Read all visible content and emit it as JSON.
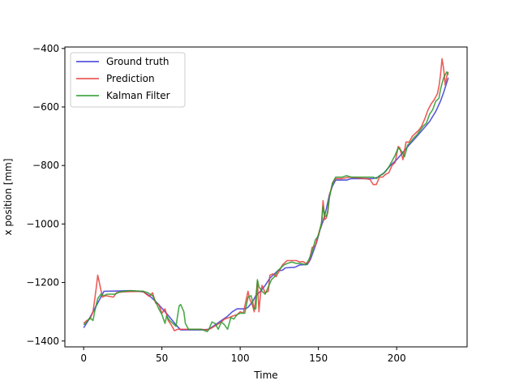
{
  "chart_data": {
    "type": "line",
    "xlabel": "Time",
    "ylabel": "x position [mm]",
    "xlim": [
      -12,
      245
    ],
    "ylim": [
      -1420,
      -395
    ],
    "x_ticks": [
      0,
      50,
      100,
      150,
      200
    ],
    "y_ticks": [
      -1400,
      -1200,
      -1000,
      -800,
      -600,
      -400
    ],
    "y_tick_labels": [
      "−1400",
      "−1200",
      "−1000",
      "−800",
      "−600",
      "−400"
    ],
    "legend_position": "top-left",
    "grid": false,
    "series": [
      {
        "name": "Ground truth",
        "color": "#3b3bd6",
        "points": [
          [
            0,
            -1355
          ],
          [
            3,
            -1330
          ],
          [
            6,
            -1300
          ],
          [
            9,
            -1270
          ],
          [
            12,
            -1240
          ],
          [
            13,
            -1230
          ],
          [
            30,
            -1228
          ],
          [
            38,
            -1232
          ],
          [
            42,
            -1245
          ],
          [
            47,
            -1270
          ],
          [
            52,
            -1300
          ],
          [
            56,
            -1325
          ],
          [
            59,
            -1345
          ],
          [
            62,
            -1362
          ],
          [
            75,
            -1362
          ],
          [
            80,
            -1360
          ],
          [
            84,
            -1345
          ],
          [
            88,
            -1330
          ],
          [
            92,
            -1315
          ],
          [
            95,
            -1300
          ],
          [
            98,
            -1290
          ],
          [
            103,
            -1290
          ],
          [
            105,
            -1285
          ],
          [
            108,
            -1265
          ],
          [
            110,
            -1245
          ],
          [
            113,
            -1230
          ],
          [
            116,
            -1210
          ],
          [
            119,
            -1185
          ],
          [
            122,
            -1170
          ],
          [
            124,
            -1160
          ],
          [
            127,
            -1158
          ],
          [
            129,
            -1150
          ],
          [
            135,
            -1148
          ],
          [
            138,
            -1140
          ],
          [
            143,
            -1138
          ],
          [
            145,
            -1120
          ],
          [
            147,
            -1090
          ],
          [
            149,
            -1060
          ],
          [
            151,
            -1020
          ],
          [
            153,
            -990
          ],
          [
            155,
            -950
          ],
          [
            157,
            -900
          ],
          [
            159,
            -870
          ],
          [
            161,
            -850
          ],
          [
            168,
            -850
          ],
          [
            171,
            -845
          ],
          [
            185,
            -845
          ],
          [
            188,
            -840
          ],
          [
            192,
            -825
          ],
          [
            196,
            -800
          ],
          [
            200,
            -780
          ],
          [
            204,
            -755
          ],
          [
            208,
            -730
          ],
          [
            213,
            -700
          ],
          [
            217,
            -675
          ],
          [
            221,
            -650
          ],
          [
            225,
            -615
          ],
          [
            228,
            -580
          ],
          [
            230,
            -550
          ],
          [
            233,
            -500
          ]
        ]
      },
      {
        "name": "Prediction",
        "color": "#e8403c",
        "points": [
          [
            0,
            -1340
          ],
          [
            2,
            -1330
          ],
          [
            4,
            -1325
          ],
          [
            6,
            -1300
          ],
          [
            7,
            -1260
          ],
          [
            8,
            -1220
          ],
          [
            9,
            -1175
          ],
          [
            10,
            -1200
          ],
          [
            12,
            -1250
          ],
          [
            14,
            -1245
          ],
          [
            19,
            -1250
          ],
          [
            21,
            -1235
          ],
          [
            25,
            -1232
          ],
          [
            38,
            -1230
          ],
          [
            40,
            -1240
          ],
          [
            42,
            -1248
          ],
          [
            44,
            -1235
          ],
          [
            46,
            -1270
          ],
          [
            48,
            -1275
          ],
          [
            50,
            -1305
          ],
          [
            52,
            -1290
          ],
          [
            54,
            -1330
          ],
          [
            56,
            -1345
          ],
          [
            58,
            -1365
          ],
          [
            60,
            -1360
          ],
          [
            63,
            -1360
          ],
          [
            75,
            -1360
          ],
          [
            79,
            -1362
          ],
          [
            82,
            -1355
          ],
          [
            85,
            -1345
          ],
          [
            88,
            -1335
          ],
          [
            90,
            -1325
          ],
          [
            93,
            -1320
          ],
          [
            95,
            -1315
          ],
          [
            98,
            -1310
          ],
          [
            100,
            -1300
          ],
          [
            102,
            -1305
          ],
          [
            104,
            -1255
          ],
          [
            105,
            -1230
          ],
          [
            106,
            -1255
          ],
          [
            108,
            -1280
          ],
          [
            109,
            -1300
          ],
          [
            110,
            -1250
          ],
          [
            111,
            -1195
          ],
          [
            112,
            -1300
          ],
          [
            113,
            -1240
          ],
          [
            114,
            -1210
          ],
          [
            116,
            -1235
          ],
          [
            118,
            -1230
          ],
          [
            119,
            -1175
          ],
          [
            121,
            -1170
          ],
          [
            123,
            -1180
          ],
          [
            125,
            -1160
          ],
          [
            127,
            -1140
          ],
          [
            128,
            -1135
          ],
          [
            130,
            -1125
          ],
          [
            133,
            -1125
          ],
          [
            136,
            -1125
          ],
          [
            138,
            -1130
          ],
          [
            140,
            -1128
          ],
          [
            142,
            -1135
          ],
          [
            144,
            -1130
          ],
          [
            146,
            -1080
          ],
          [
            148,
            -1075
          ],
          [
            150,
            -1035
          ],
          [
            152,
            -1000
          ],
          [
            153,
            -920
          ],
          [
            154,
            -985
          ],
          [
            155,
            -980
          ],
          [
            156,
            -960
          ],
          [
            157,
            -905
          ],
          [
            159,
            -860
          ],
          [
            161,
            -845
          ],
          [
            165,
            -845
          ],
          [
            170,
            -840
          ],
          [
            180,
            -845
          ],
          [
            183,
            -848
          ],
          [
            185,
            -865
          ],
          [
            187,
            -865
          ],
          [
            189,
            -840
          ],
          [
            191,
            -840
          ],
          [
            193,
            -830
          ],
          [
            195,
            -825
          ],
          [
            197,
            -800
          ],
          [
            199,
            -790
          ],
          [
            201,
            -735
          ],
          [
            202,
            -740
          ],
          [
            204,
            -780
          ],
          [
            206,
            -720
          ],
          [
            208,
            -720
          ],
          [
            210,
            -700
          ],
          [
            212,
            -690
          ],
          [
            214,
            -680
          ],
          [
            216,
            -665
          ],
          [
            218,
            -640
          ],
          [
            220,
            -610
          ],
          [
            222,
            -590
          ],
          [
            224,
            -575
          ],
          [
            226,
            -555
          ],
          [
            227,
            -530
          ],
          [
            228,
            -490
          ],
          [
            229,
            -435
          ],
          [
            230,
            -470
          ],
          [
            231,
            -525
          ],
          [
            232,
            -495
          ],
          [
            233,
            -480
          ]
        ]
      },
      {
        "name": "Kalman Filter",
        "color": "#2c9a2c",
        "points": [
          [
            0,
            -1345
          ],
          [
            2,
            -1335
          ],
          [
            4,
            -1320
          ],
          [
            6,
            -1330
          ],
          [
            7,
            -1300
          ],
          [
            9,
            -1255
          ],
          [
            11,
            -1240
          ],
          [
            13,
            -1245
          ],
          [
            15,
            -1240
          ],
          [
            20,
            -1240
          ],
          [
            23,
            -1232
          ],
          [
            30,
            -1228
          ],
          [
            38,
            -1230
          ],
          [
            41,
            -1235
          ],
          [
            44,
            -1245
          ],
          [
            46,
            -1265
          ],
          [
            48,
            -1290
          ],
          [
            50,
            -1310
          ],
          [
            52,
            -1340
          ],
          [
            53,
            -1315
          ],
          [
            55,
            -1330
          ],
          [
            57,
            -1340
          ],
          [
            59,
            -1350
          ],
          [
            61,
            -1280
          ],
          [
            62,
            -1275
          ],
          [
            64,
            -1300
          ],
          [
            65,
            -1340
          ],
          [
            67,
            -1360
          ],
          [
            75,
            -1360
          ],
          [
            79,
            -1368
          ],
          [
            80,
            -1360
          ],
          [
            82,
            -1335
          ],
          [
            84,
            -1340
          ],
          [
            86,
            -1360
          ],
          [
            88,
            -1335
          ],
          [
            90,
            -1345
          ],
          [
            92,
            -1360
          ],
          [
            94,
            -1320
          ],
          [
            96,
            -1325
          ],
          [
            98,
            -1310
          ],
          [
            100,
            -1305
          ],
          [
            103,
            -1305
          ],
          [
            105,
            -1250
          ],
          [
            107,
            -1245
          ],
          [
            109,
            -1290
          ],
          [
            110,
            -1290
          ],
          [
            111,
            -1190
          ],
          [
            112,
            -1215
          ],
          [
            114,
            -1230
          ],
          [
            116,
            -1240
          ],
          [
            118,
            -1215
          ],
          [
            120,
            -1190
          ],
          [
            122,
            -1180
          ],
          [
            124,
            -1160
          ],
          [
            126,
            -1150
          ],
          [
            128,
            -1140
          ],
          [
            130,
            -1135
          ],
          [
            133,
            -1130
          ],
          [
            136,
            -1135
          ],
          [
            139,
            -1135
          ],
          [
            142,
            -1140
          ],
          [
            144,
            -1120
          ],
          [
            146,
            -1095
          ],
          [
            148,
            -1055
          ],
          [
            150,
            -1040
          ],
          [
            152,
            -995
          ],
          [
            153,
            -940
          ],
          [
            154,
            -970
          ],
          [
            155,
            -975
          ],
          [
            156,
            -955
          ],
          [
            157,
            -910
          ],
          [
            159,
            -860
          ],
          [
            161,
            -840
          ],
          [
            165,
            -840
          ],
          [
            168,
            -835
          ],
          [
            171,
            -840
          ],
          [
            185,
            -840
          ],
          [
            187,
            -845
          ],
          [
            189,
            -835
          ],
          [
            191,
            -830
          ],
          [
            193,
            -820
          ],
          [
            195,
            -805
          ],
          [
            197,
            -785
          ],
          [
            199,
            -765
          ],
          [
            201,
            -740
          ],
          [
            203,
            -750
          ],
          [
            205,
            -770
          ],
          [
            207,
            -730
          ],
          [
            209,
            -720
          ],
          [
            211,
            -705
          ],
          [
            213,
            -695
          ],
          [
            215,
            -680
          ],
          [
            217,
            -665
          ],
          [
            219,
            -655
          ],
          [
            221,
            -625
          ],
          [
            223,
            -610
          ],
          [
            225,
            -580
          ],
          [
            227,
            -570
          ],
          [
            228,
            -540
          ],
          [
            229,
            -520
          ],
          [
            230,
            -500
          ],
          [
            232,
            -480
          ],
          [
            233,
            -490
          ]
        ]
      }
    ]
  }
}
